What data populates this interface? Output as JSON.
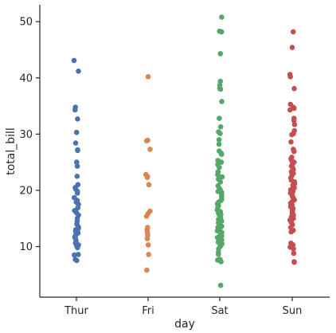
{
  "chart_data": {
    "type": "scatter",
    "title": "",
    "xlabel": "day",
    "ylabel": "total_bill",
    "categories": [
      "Thur",
      "Fri",
      "Sat",
      "Sun"
    ],
    "ylim": [
      1,
      53
    ],
    "yticks": [
      10,
      20,
      30,
      40,
      50
    ],
    "grid": false,
    "legend": "none",
    "series": [
      {
        "category": "Thur",
        "color": "#4c72b0",
        "values": [
          43.1,
          41.2,
          34.8,
          34.3,
          32.7,
          30.3,
          28.4,
          27.2,
          27.1,
          25.0,
          24.3,
          22.5,
          21.0,
          20.5,
          20.2,
          19.8,
          19.5,
          18.7,
          18.2,
          17.9,
          17.5,
          16.9,
          16.4,
          16.0,
          15.6,
          15.0,
          14.5,
          14.0,
          13.5,
          13.2,
          13.0,
          12.7,
          12.4,
          12.0,
          11.7,
          11.4,
          11.0,
          10.6,
          10.3,
          10.1,
          9.8,
          8.6,
          8.5,
          7.7,
          7.5
        ]
      },
      {
        "category": "Fri",
        "color": "#dd8452",
        "values": [
          40.2,
          28.9,
          28.8,
          27.3,
          22.8,
          22.5,
          22.3,
          21.0,
          16.3,
          15.9,
          15.4,
          13.4,
          13.0,
          12.5,
          12.0,
          11.4,
          10.3,
          8.6,
          5.8
        ]
      },
      {
        "category": "Sat",
        "color": "#55a868",
        "values": [
          50.8,
          48.3,
          48.2,
          44.3,
          39.4,
          38.7,
          38.1,
          38.0,
          35.8,
          32.8,
          31.3,
          30.4,
          30.1,
          29.0,
          28.2,
          27.0,
          26.6,
          26.4,
          25.3,
          25.0,
          24.6,
          24.1,
          23.3,
          22.8,
          22.4,
          22.0,
          21.5,
          20.8,
          20.3,
          20.1,
          19.8,
          19.6,
          19.4,
          19.1,
          18.8,
          18.4,
          18.2,
          17.9,
          17.6,
          17.3,
          16.9,
          16.5,
          16.2,
          15.9,
          15.7,
          15.4,
          15.1,
          14.8,
          14.5,
          14.2,
          13.9,
          13.6,
          13.4,
          13.1,
          12.8,
          12.5,
          12.2,
          11.9,
          11.6,
          11.2,
          10.8,
          10.5,
          10.3,
          10.1,
          9.6,
          9.0,
          8.6,
          7.7,
          7.6,
          7.3,
          3.1
        ]
      },
      {
        "category": "Sun",
        "color": "#c44e52",
        "values": [
          48.2,
          45.4,
          40.6,
          40.2,
          38.1,
          35.3,
          34.8,
          34.6,
          34.3,
          32.8,
          32.4,
          31.7,
          30.6,
          30.1,
          29.9,
          28.6,
          27.3,
          26.9,
          25.9,
          25.6,
          25.3,
          25.0,
          24.7,
          24.3,
          24.0,
          23.7,
          23.3,
          23.0,
          22.6,
          22.2,
          21.8,
          21.5,
          21.2,
          20.9,
          20.7,
          20.4,
          20.1,
          19.8,
          19.5,
          19.2,
          18.9,
          18.6,
          18.3,
          18.0,
          17.7,
          17.4,
          17.1,
          16.8,
          16.5,
          16.2,
          15.9,
          15.6,
          15.3,
          15.0,
          14.7,
          14.3,
          13.9,
          13.4,
          12.9,
          12.6,
          10.6,
          10.3,
          10.1,
          9.9,
          9.6,
          8.8,
          7.3,
          7.2
        ]
      }
    ]
  }
}
